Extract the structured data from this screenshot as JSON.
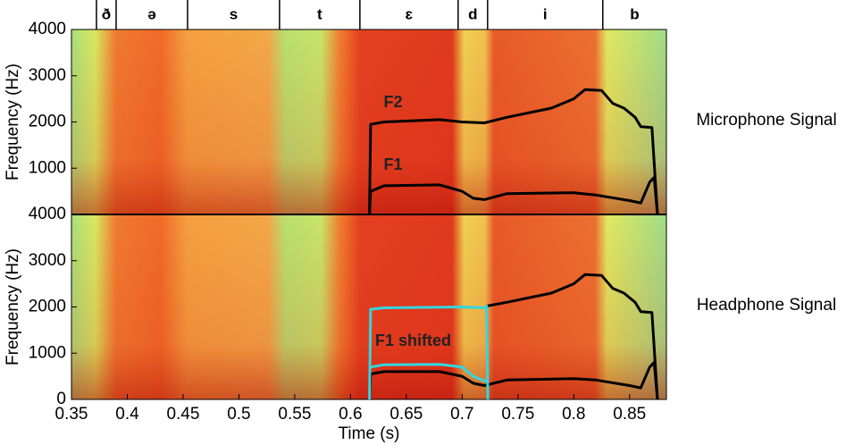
{
  "chart_data": [
    {
      "type": "line",
      "ylabel": "Frequency (Hz)",
      "side_label": "Microphone Signal",
      "segments": {
        "labels": [
          "ð",
          "ə",
          "s",
          "t",
          "ɛ",
          "d",
          "i",
          "b"
        ],
        "boundaries": [
          0.3724,
          0.39,
          0.454,
          0.5364,
          0.6084,
          0.6964,
          0.7228,
          0.826,
          0.883
        ]
      },
      "xlim": [
        0.35,
        0.883
      ],
      "ylim": [
        0,
        4000
      ],
      "yticks": [
        1000,
        2000,
        3000,
        4000
      ],
      "series": [
        {
          "name": "F2",
          "color": "#000000",
          "x": [
            0.617,
            0.618,
            0.63,
            0.68,
            0.7,
            0.72,
            0.74,
            0.78,
            0.8,
            0.81,
            0.825,
            0.835,
            0.845,
            0.855,
            0.86,
            0.87,
            0.875
          ],
          "values": [
            0,
            1950,
            2000,
            2050,
            2000,
            1980,
            2100,
            2300,
            2500,
            2700,
            2680,
            2400,
            2300,
            2100,
            1900,
            1880,
            0
          ]
        },
        {
          "name": "F1",
          "color": "#000000",
          "x": [
            0.617,
            0.618,
            0.63,
            0.68,
            0.7,
            0.71,
            0.72,
            0.74,
            0.8,
            0.82,
            0.85,
            0.86,
            0.868,
            0.872,
            0.875
          ],
          "values": [
            0,
            500,
            620,
            640,
            500,
            350,
            320,
            450,
            470,
            420,
            300,
            250,
            700,
            800,
            0
          ]
        }
      ]
    },
    {
      "type": "line",
      "ylabel": "Frequency (Hz)",
      "xlabel": "Time (s)",
      "side_label": "Headphone Signal",
      "annotation": "F1 shifted",
      "xlim": [
        0.35,
        0.883
      ],
      "ylim": [
        0,
        4000
      ],
      "yticks": [
        0,
        1000,
        2000,
        3000,
        4000
      ],
      "xticks": [
        0.35,
        0.4,
        0.45,
        0.5,
        0.55,
        0.6,
        0.65,
        0.7,
        0.75,
        0.8,
        0.85
      ],
      "series": [
        {
          "color": "#000000",
          "x": [
            0.722,
            0.74,
            0.78,
            0.8,
            0.81,
            0.825,
            0.835,
            0.845,
            0.855,
            0.86,
            0.87,
            0.875
          ],
          "values": [
            2020,
            2100,
            2300,
            2500,
            2700,
            2680,
            2400,
            2300,
            2100,
            1900,
            1880,
            0
          ]
        },
        {
          "color": "#000000",
          "x": [
            0.617,
            0.618,
            0.63,
            0.68,
            0.7,
            0.71,
            0.72,
            0.74,
            0.8,
            0.82,
            0.85,
            0.86,
            0.868,
            0.872,
            0.875
          ],
          "values": [
            0,
            550,
            600,
            600,
            500,
            350,
            300,
            420,
            450,
            420,
            300,
            250,
            700,
            800,
            0
          ]
        },
        {
          "color": "#33d6e0",
          "x": [
            0.617,
            0.618,
            0.63,
            0.7,
            0.72,
            0.722,
            0.723
          ],
          "values": [
            0,
            1950,
            1980,
            2000,
            1980,
            2020,
            0
          ]
        },
        {
          "color": "#33d6e0",
          "x": [
            0.618,
            0.63,
            0.68,
            0.7,
            0.71,
            0.72,
            0.723
          ],
          "values": [
            700,
            750,
            760,
            700,
            500,
            400,
            400
          ]
        }
      ]
    }
  ]
}
